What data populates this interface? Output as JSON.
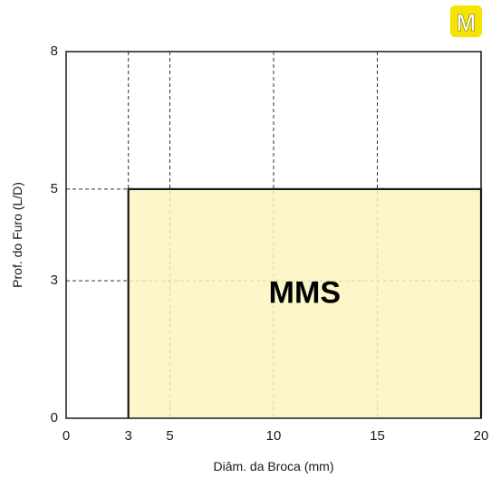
{
  "chart_data": {
    "type": "area",
    "xlabel": "Diâm. da Broca (mm)",
    "ylabel": "Prof. do Furo (L/D)",
    "xlim": [
      0,
      20
    ],
    "ylim": [
      0,
      8
    ],
    "x_ticks": [
      0,
      3,
      5,
      10,
      15,
      20
    ],
    "y_ticks": [
      0,
      3,
      5,
      8
    ],
    "grid": "dashed",
    "regions": [
      {
        "label": "MMS",
        "x": [
          3,
          20
        ],
        "y": [
          0,
          5
        ],
        "color": "#fdf5bf",
        "edge": "#1a1a1a"
      }
    ],
    "badge": {
      "text": "M",
      "color": "#f5e400",
      "text_color": "#ffffff"
    }
  }
}
